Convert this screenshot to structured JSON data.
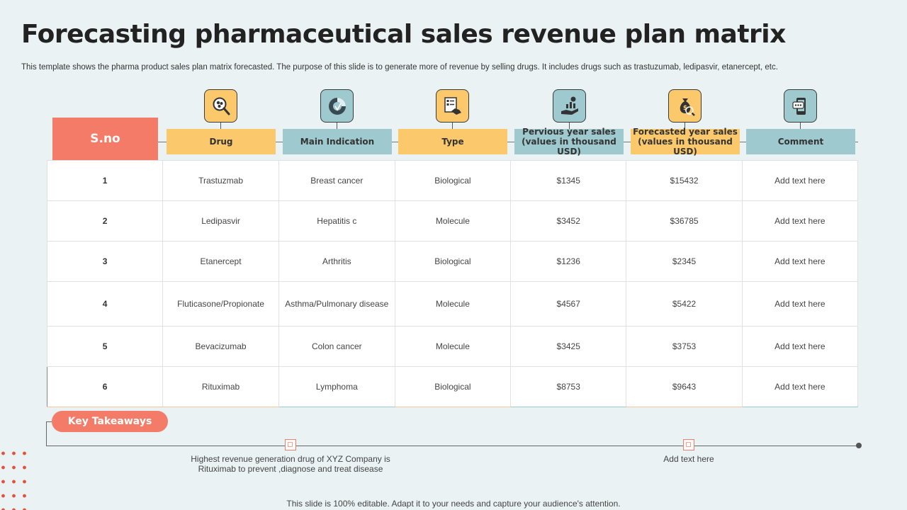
{
  "title": "Forecasting pharmaceutical sales revenue plan matrix",
  "subtitle": "This template shows the pharma product sales plan matrix forecasted. The purpose of this slide is to generate more of revenue by selling drugs. It includes drugs such as trastuzumab, ledipasvir, etanercept, etc.",
  "colors": {
    "accent": "#f47b67",
    "yellow": "#fbc96b",
    "teal": "#9ec9cf",
    "background": "#eaf2f3"
  },
  "table": {
    "sno_header": "S.no",
    "headers": [
      {
        "label": "Drug",
        "icon": "magnifier-molecule-icon"
      },
      {
        "label": "Main Indication",
        "icon": "chart-wheel-icon"
      },
      {
        "label": "Type",
        "icon": "checklist-handshake-icon"
      },
      {
        "label": "Pervious year sales (values in thousand USD)",
        "icon": "hand-money-growth-icon"
      },
      {
        "label": "Forecasted year sales (values in thousand USD)",
        "icon": "money-bag-search-icon"
      },
      {
        "label": "Comment",
        "icon": "phone-chat-icon"
      }
    ],
    "rows": [
      [
        "1",
        "Trastuzmab",
        "Breast cancer",
        "Biological",
        "$1345",
        "$15432",
        "Add text here"
      ],
      [
        "2",
        "Ledipasvir",
        "Hepatitis c",
        "Molecule",
        "$3452",
        "$36785",
        "Add text here"
      ],
      [
        "3",
        "Etanercept",
        "Arthritis",
        "Biological",
        "$1236",
        "$2345",
        "Add text here"
      ],
      [
        "4",
        "Fluticasone/Propionate",
        "Asthma/Pulmonary disease",
        "Molecule",
        "$4567",
        "$5422",
        "Add text here"
      ],
      [
        "5",
        "Bevacizumab",
        "Colon cancer",
        "Molecule",
        "$3425",
        "$3753",
        "Add text here"
      ],
      [
        "6",
        "Rituximab",
        "Lymphoma",
        "Biological",
        "$8753",
        "$9643",
        "Add text here"
      ]
    ]
  },
  "takeaways": {
    "label": "Key Takeaways",
    "items": [
      "Highest revenue generation drug of XYZ  Company is Rituximab to prevent ,diagnose and treat disease",
      "Add text here"
    ]
  },
  "footer": "This slide is 100% editable. Adapt it to your needs and capture your audience's attention."
}
